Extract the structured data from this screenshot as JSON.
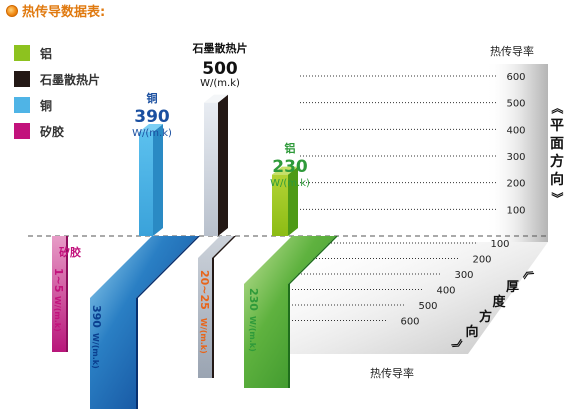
{
  "title": "热传导数据表:",
  "legend": [
    {
      "label": "铝",
      "color": "#8dc21f"
    },
    {
      "label": "石墨散热片",
      "color": "#231815"
    },
    {
      "label": "铜",
      "color": "#4fb4e6"
    },
    {
      "label": "矽胶",
      "color": "#c2127c"
    }
  ],
  "chart_data": {
    "type": "bar",
    "title": "热传导数据表:",
    "planar": {
      "axis_label": "热传导率",
      "direction_label": "《平面方向》",
      "ticks": [
        100,
        200,
        300,
        400,
        500,
        600
      ],
      "ylim": [
        0,
        600
      ],
      "series": [
        {
          "name": "铜",
          "value": 390,
          "label": "390",
          "unit": "W/(m.k)",
          "color": "#4fb4e6"
        },
        {
          "name": "石墨散热片",
          "value": 500,
          "label": "500",
          "unit": "W/(m.k)",
          "color": "#231815"
        },
        {
          "name": "铝",
          "value": 230,
          "label": "230",
          "unit": "W/(m.k)",
          "color": "#8dc21f"
        }
      ]
    },
    "thickness": {
      "axis_label": "热传导率",
      "direction_label": "《厚度方向》",
      "ticks": [
        100,
        200,
        300,
        400,
        500,
        600
      ],
      "ylim": [
        0,
        600
      ],
      "series": [
        {
          "name": "矽胶",
          "range": [
            1,
            5
          ],
          "label": "1~5",
          "unit": "W/(m.k)",
          "color": "#c2127c"
        },
        {
          "name": "铜",
          "value": 390,
          "label": "390",
          "unit": "W/(m.k)",
          "color": "#0a3f8f"
        },
        {
          "name": "石墨散热片",
          "range": [
            20,
            25
          ],
          "label": "20~25",
          "unit": "W/(m.k)",
          "color": "#e8651a"
        },
        {
          "name": "铝",
          "value": 230,
          "label": "230",
          "unit": "W/(m.k)",
          "color": "#3a9a2a"
        }
      ]
    }
  }
}
